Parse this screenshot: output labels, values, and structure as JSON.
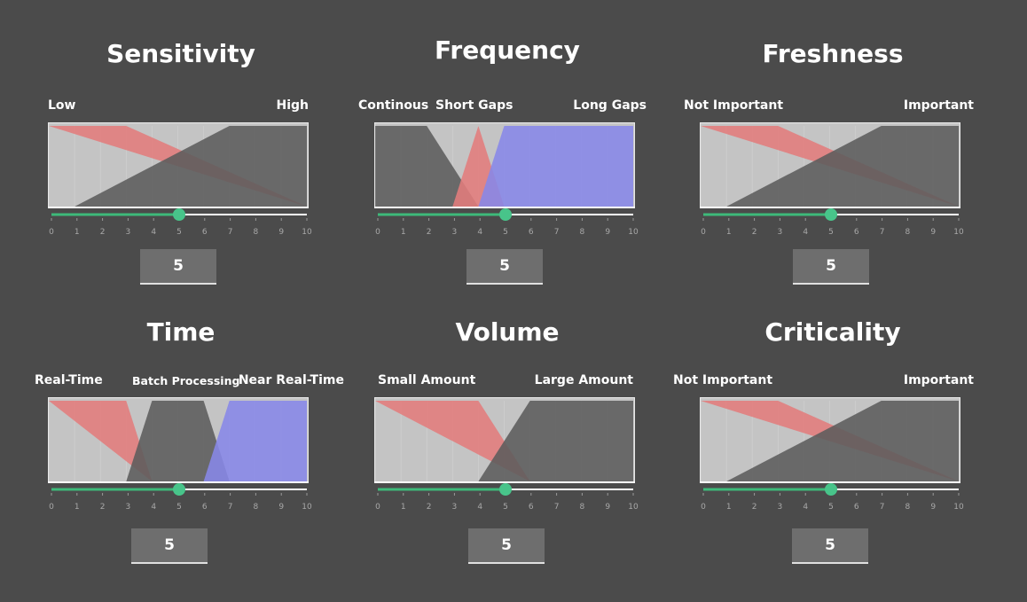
{
  "panels": [
    {
      "id": "sensitivity",
      "title": "Sensitivity",
      "labels": [
        "Low",
        "High"
      ],
      "value": 5,
      "display_value": "5",
      "ticks": [
        "0",
        "1",
        "2",
        "3",
        "4",
        "5",
        "6",
        "7",
        "8",
        "9",
        "10"
      ],
      "regions": [
        {
          "color": "#e27c7c",
          "pts": [
            [
              0,
              1
            ],
            [
              3,
              1
            ],
            [
              10,
              0
            ]
          ]
        },
        {
          "color": "#5c5c5c",
          "pts": [
            [
              1,
              0
            ],
            [
              7,
              1
            ],
            [
              10,
              1
            ],
            [
              10,
              0
            ]
          ]
        }
      ]
    },
    {
      "id": "frequency",
      "title": "Frequency",
      "labels": [
        "Continous",
        "Short Gaps",
        "Long Gaps"
      ],
      "value": 5,
      "display_value": "5",
      "ticks": [
        "0",
        "1",
        "2",
        "3",
        "4",
        "5",
        "6",
        "7",
        "8",
        "9",
        "10"
      ],
      "regions": [
        {
          "color": "#5c5c5c",
          "pts": [
            [
              0,
              0
            ],
            [
              0,
              1
            ],
            [
              2,
              1
            ],
            [
              4,
              0
            ]
          ]
        },
        {
          "color": "#e27c7c",
          "pts": [
            [
              3,
              0
            ],
            [
              4,
              1
            ],
            [
              5,
              0
            ]
          ]
        },
        {
          "color": "#8888e8",
          "pts": [
            [
              4,
              0
            ],
            [
              5,
              1
            ],
            [
              10,
              1
            ],
            [
              10,
              0
            ]
          ]
        }
      ]
    },
    {
      "id": "freshness",
      "title": "Freshness",
      "labels": [
        "Not Important",
        "Important"
      ],
      "value": 5,
      "display_value": "5",
      "ticks": [
        "0",
        "1",
        "2",
        "3",
        "4",
        "5",
        "6",
        "7",
        "8",
        "9",
        "10"
      ],
      "regions": [
        {
          "color": "#e27c7c",
          "pts": [
            [
              0,
              1
            ],
            [
              3,
              1
            ],
            [
              10,
              0
            ]
          ]
        },
        {
          "color": "#5c5c5c",
          "pts": [
            [
              1,
              0
            ],
            [
              7,
              1
            ],
            [
              10,
              1
            ],
            [
              10,
              0
            ]
          ]
        }
      ]
    },
    {
      "id": "time",
      "title": "Time",
      "labels": [
        "Real-Time",
        "Batch Processing",
        "Near Real-Time"
      ],
      "value": 5,
      "display_value": "5",
      "ticks": [
        "0",
        "1",
        "2",
        "3",
        "4",
        "5",
        "6",
        "7",
        "8",
        "9",
        "10"
      ],
      "regions": [
        {
          "color": "#e27c7c",
          "pts": [
            [
              0,
              1
            ],
            [
              3,
              1
            ],
            [
              4,
              0
            ]
          ]
        },
        {
          "color": "#5c5c5c",
          "pts": [
            [
              3,
              0
            ],
            [
              4,
              1
            ],
            [
              6,
              1
            ],
            [
              7,
              0
            ]
          ]
        },
        {
          "color": "#8888e8",
          "pts": [
            [
              6,
              0
            ],
            [
              7,
              1
            ],
            [
              10,
              1
            ],
            [
              10,
              0
            ]
          ]
        }
      ]
    },
    {
      "id": "volume",
      "title": "Volume",
      "labels": [
        "Small Amount",
        "Large Amount"
      ],
      "value": 5,
      "display_value": "5",
      "ticks": [
        "0",
        "1",
        "2",
        "3",
        "4",
        "5",
        "6",
        "7",
        "8",
        "9",
        "10"
      ],
      "regions": [
        {
          "color": "#e27c7c",
          "pts": [
            [
              0,
              1
            ],
            [
              4,
              1
            ],
            [
              6,
              0
            ]
          ]
        },
        {
          "color": "#5c5c5c",
          "pts": [
            [
              4,
              0
            ],
            [
              6,
              1
            ],
            [
              10,
              1
            ],
            [
              10,
              0
            ]
          ]
        }
      ]
    },
    {
      "id": "criticality",
      "title": "Criticality",
      "labels": [
        "Not Important",
        "Important"
      ],
      "value": 5,
      "display_value": "5",
      "ticks": [
        "0",
        "1",
        "2",
        "3",
        "4",
        "5",
        "6",
        "7",
        "8",
        "9",
        "10"
      ],
      "regions": [
        {
          "color": "#e27c7c",
          "pts": [
            [
              0,
              1
            ],
            [
              3,
              1
            ],
            [
              10,
              0
            ]
          ]
        },
        {
          "color": "#5c5c5c",
          "pts": [
            [
              1,
              0
            ],
            [
              7,
              1
            ],
            [
              10,
              1
            ],
            [
              10,
              0
            ]
          ]
        }
      ]
    }
  ],
  "colors": {
    "background": "#4b4b4b",
    "chart_bg": "#c4c4c4",
    "slider_track": "#ffffff",
    "slider_fill": "#3dba7a",
    "slider_thumb": "#48c48a",
    "value_box": "#6e6e6e"
  },
  "slider_range": [
    0,
    10
  ]
}
